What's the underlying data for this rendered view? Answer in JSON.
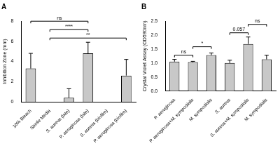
{
  "chart_data": [
    {
      "type": "bar",
      "title": "A",
      "categories": [
        "10% Bleach",
        "Sterile Media",
        "S. aureus (late)",
        "P. aeruginosa (late)",
        "S. aureus (biofilm)",
        "P. aeruginosa (biofilm)"
      ],
      "values": [
        3.3,
        0,
        0.4,
        4.8,
        0,
        2.6
      ],
      "errors": [
        1.5,
        0,
        0.9,
        1.1,
        0,
        1.6
      ],
      "color": "#c8c8c8",
      "y_label": "Inhibition Zone (mm)",
      "ylim": [
        0,
        8
      ],
      "yticks": [
        0,
        2,
        4,
        6,
        8
      ],
      "grid": false,
      "annotations": [
        {
          "text": "**",
          "between": [
            1,
            5
          ]
        },
        {
          "text": "****",
          "between": [
            1,
            3
          ]
        },
        {
          "text": "ns",
          "between": [
            0,
            3
          ]
        }
      ]
    },
    {
      "type": "bar",
      "title": "B",
      "categories": [
        "P. aeruginosa",
        "P. aeruginosa+M. sympodialis",
        "M. sympodialis",
        "S. aureus",
        "S. aureus+M. sympodialis",
        "M. sympodialis"
      ],
      "values": [
        1.05,
        1.03,
        1.28,
        1.0,
        1.68,
        1.13
      ],
      "errors": [
        0.08,
        0.03,
        0.08,
        0.1,
        0.25,
        0.15
      ],
      "color": "#c8c8c8",
      "y_label": "Crystal Violet Assay (OD590nm)",
      "ylim": [
        0,
        2.5
      ],
      "yticks": [
        {
          "value": 0,
          "label": "0.0"
        },
        {
          "value": 0.5,
          "label": "0.5"
        },
        {
          "value": 1,
          "label": "1.0"
        },
        {
          "value": 1.5,
          "label": "1.5"
        },
        {
          "value": 2,
          "label": "2.0"
        },
        {
          "value": 2.5,
          "label": "2.5"
        }
      ],
      "grid": false,
      "annotations": [
        {
          "text": "ns",
          "between": [
            0,
            1
          ]
        },
        {
          "text": "*",
          "between": [
            1,
            2
          ]
        },
        {
          "text": "0.057",
          "between": [
            3,
            4
          ]
        },
        {
          "text": "ns",
          "between": [
            4,
            5
          ]
        }
      ]
    }
  ]
}
